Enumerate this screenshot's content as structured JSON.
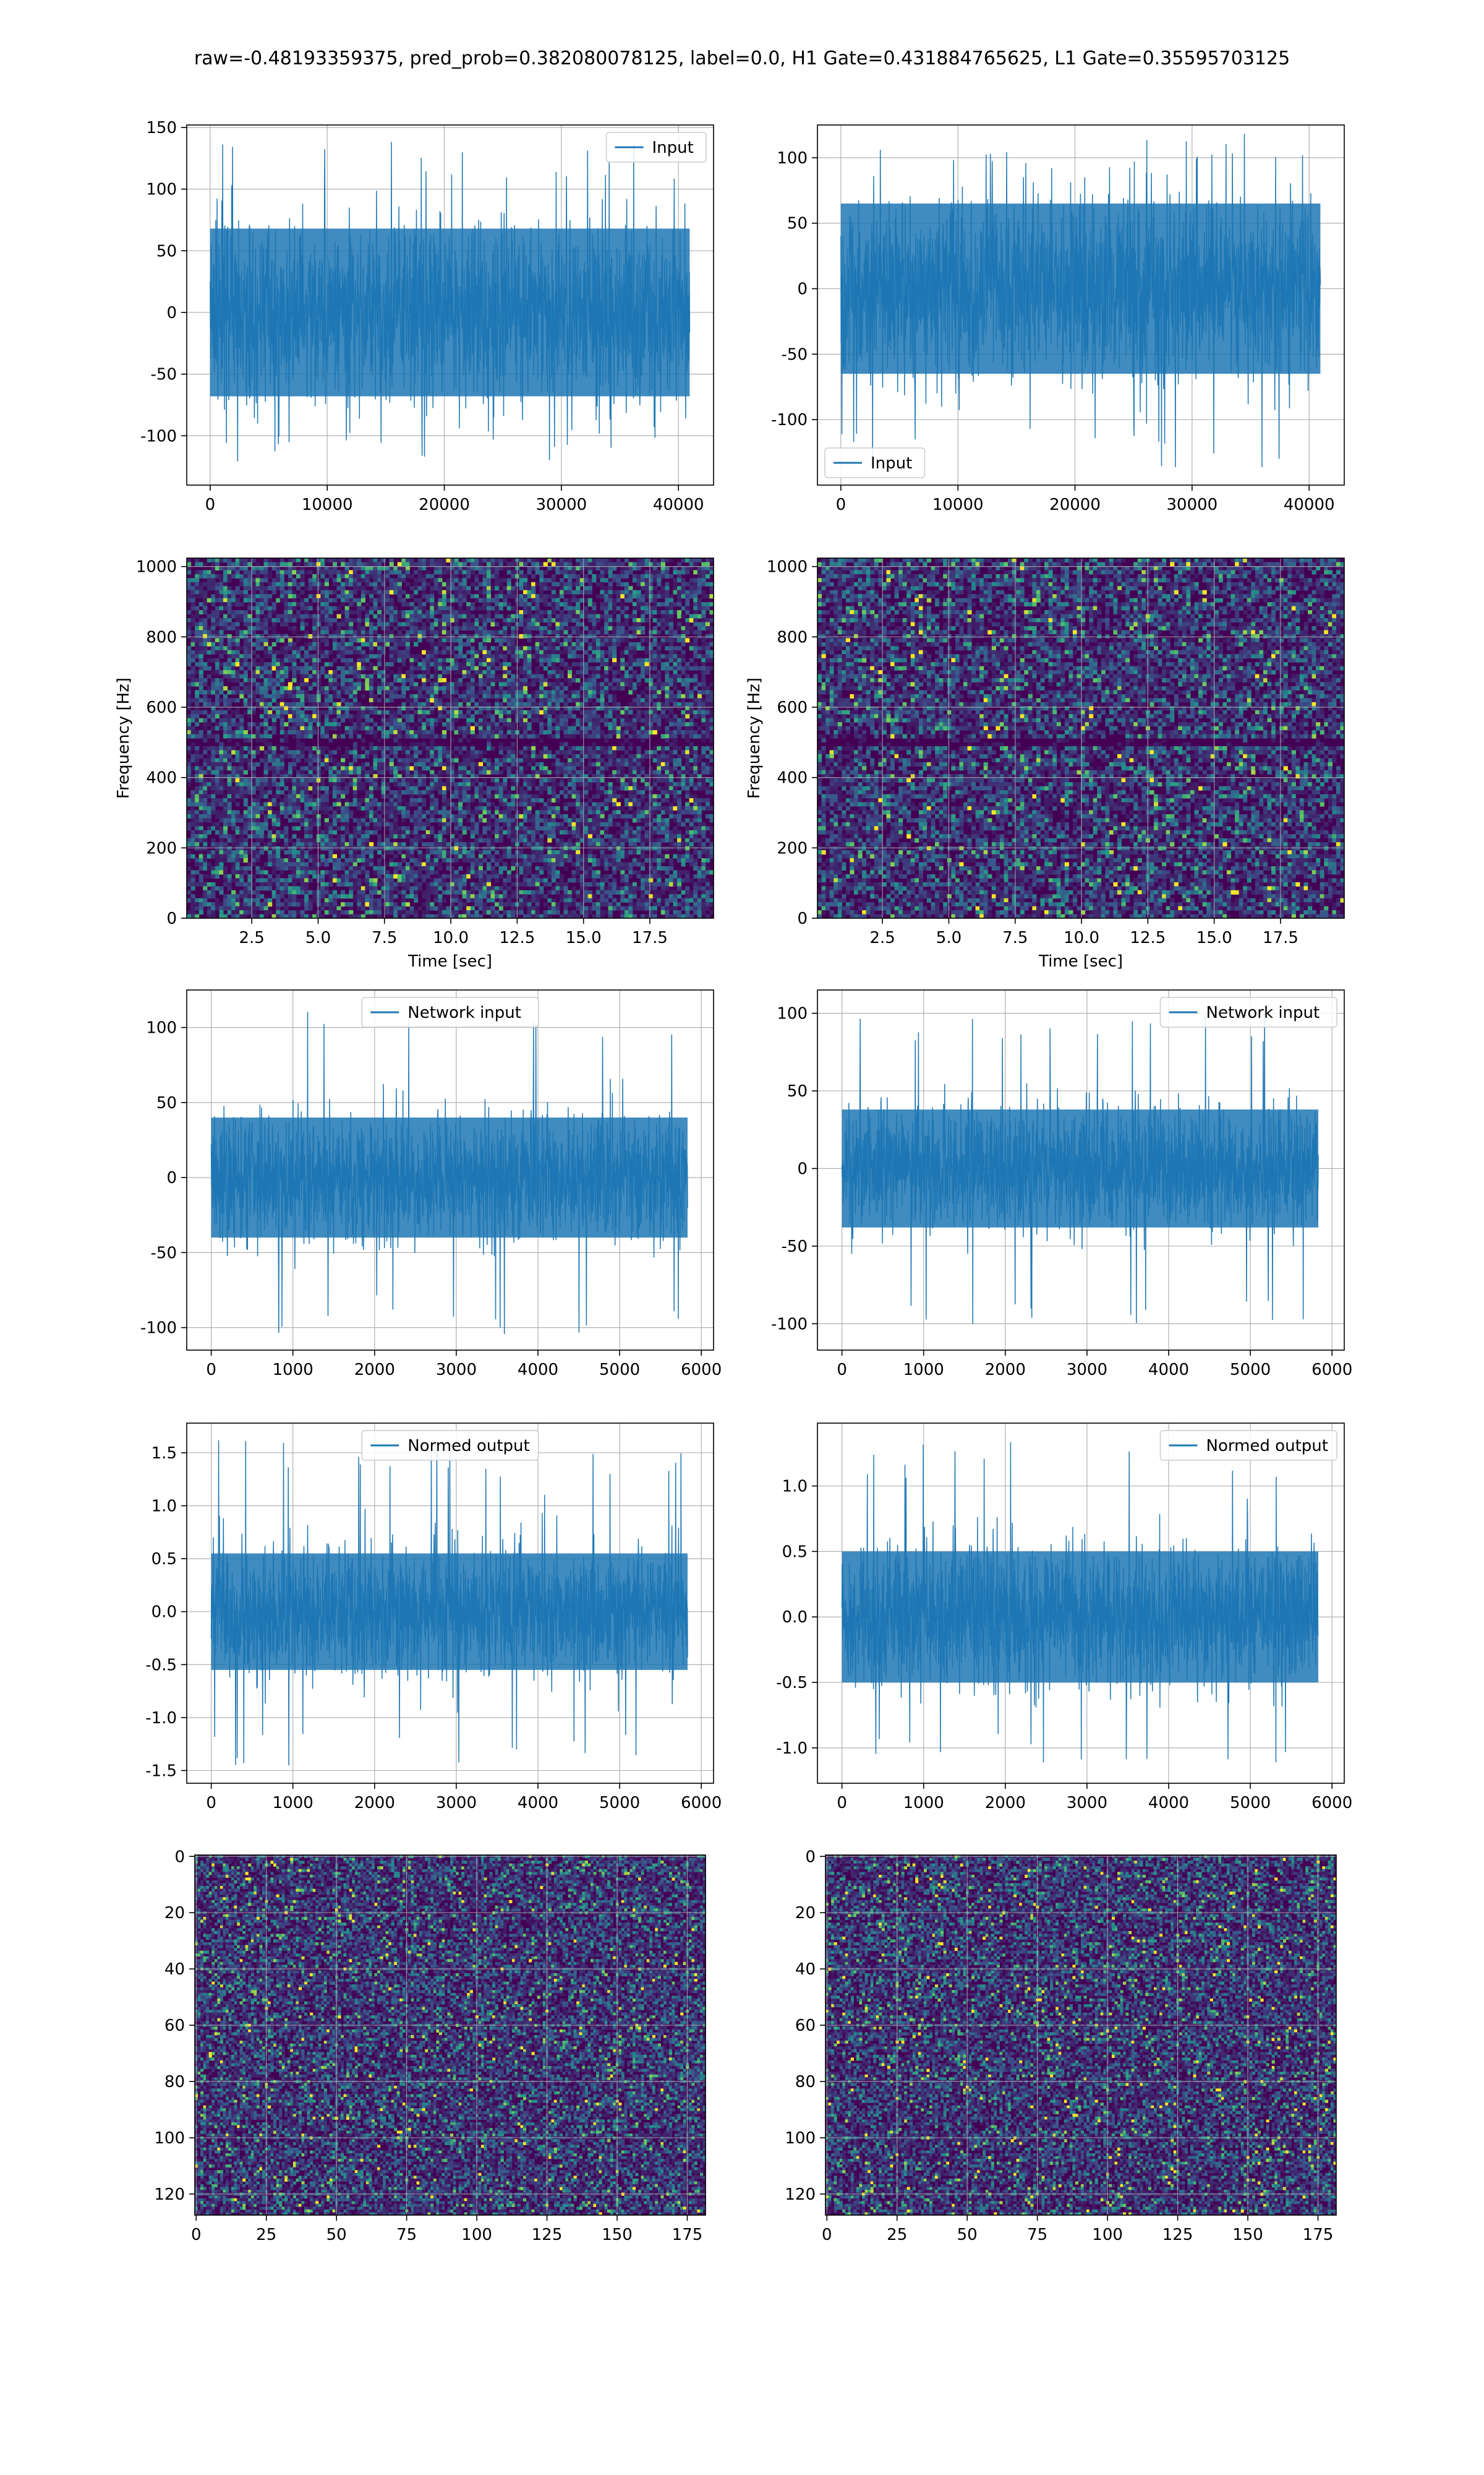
{
  "figure": {
    "title": "raw=-0.48193359375, pred_prob=0.382080078125, label=0.0, H1 Gate=0.431884765625, L1 Gate=0.35595703125"
  },
  "colors": {
    "line": "#1f77b4",
    "grid": "#b0b0b0",
    "heatmap_low": "#440154",
    "heatmap_mid": "#3b528b",
    "heatmap_high": "#21918c",
    "heatmap_peak": "#fde725"
  },
  "chart_data": [
    {
      "id": "row1-left",
      "type": "line",
      "legend": {
        "label": "Input",
        "placement": "upper right"
      },
      "xlim": [
        -2000,
        43000
      ],
      "ylim": [
        -140,
        152
      ],
      "xticks": [
        0,
        10000,
        20000,
        30000,
        40000
      ],
      "yticks": [
        -100,
        -50,
        0,
        50,
        100,
        150
      ],
      "grid": true,
      "series": [
        {
          "x_range": [
            0,
            40960
          ],
          "envelope_p95": [
            -68,
            68
          ],
          "envelope_extreme": [
            -122,
            139
          ]
        }
      ]
    },
    {
      "id": "row1-right",
      "type": "line",
      "legend": {
        "label": "Input",
        "placement": "lower left"
      },
      "xlim": [
        -2000,
        43000
      ],
      "ylim": [
        -150,
        125
      ],
      "xticks": [
        0,
        10000,
        20000,
        30000,
        40000
      ],
      "yticks": [
        -100,
        -50,
        0,
        50,
        100
      ],
      "grid": true,
      "series": [
        {
          "x_range": [
            0,
            40960
          ],
          "envelope_p95": [
            -65,
            65
          ],
          "envelope_extreme": [
            -137,
            122
          ]
        }
      ]
    },
    {
      "id": "row2-left",
      "type": "heatmap",
      "xlabel": "Time [sec]",
      "ylabel": "Frequency [Hz]",
      "xlim": [
        0.05,
        19.9
      ],
      "ylim": [
        0,
        1024
      ],
      "xticks": [
        2.5,
        5.0,
        7.5,
        10.0,
        12.5,
        15.0,
        17.5
      ],
      "yticks": [
        0,
        200,
        400,
        600,
        800,
        1000
      ],
      "grid": true,
      "colormap": "viridis",
      "grid_cells": [
        130,
        90
      ],
      "dark_band_hz": 500
    },
    {
      "id": "row2-right",
      "type": "heatmap",
      "xlabel": "Time [sec]",
      "ylabel": "Frequency [Hz]",
      "xlim": [
        0.05,
        19.9
      ],
      "ylim": [
        0,
        1024
      ],
      "xticks": [
        2.5,
        5.0,
        7.5,
        10.0,
        12.5,
        15.0,
        17.5
      ],
      "yticks": [
        0,
        200,
        400,
        600,
        800,
        1000
      ],
      "grid": true,
      "colormap": "viridis",
      "grid_cells": [
        130,
        90
      ],
      "dark_band_hz": 500
    },
    {
      "id": "row3-left",
      "type": "line",
      "legend": {
        "label": "Network input",
        "placement": "upper center"
      },
      "xlim": [
        -300,
        6150
      ],
      "ylim": [
        -115,
        125
      ],
      "xticks": [
        0,
        1000,
        2000,
        3000,
        4000,
        5000,
        6000
      ],
      "yticks": [
        -100,
        -50,
        0,
        50,
        100
      ],
      "grid": true,
      "series": [
        {
          "x_range": [
            0,
            5832
          ],
          "envelope_p95": [
            -40,
            40
          ],
          "envelope_extreme": [
            -105,
            115
          ]
        }
      ]
    },
    {
      "id": "row3-right",
      "type": "line",
      "legend": {
        "label": "Network input",
        "placement": "upper right"
      },
      "xlim": [
        -300,
        6150
      ],
      "ylim": [
        -117,
        115
      ],
      "xticks": [
        0,
        1000,
        2000,
        3000,
        4000,
        5000,
        6000
      ],
      "yticks": [
        -100,
        -50,
        0,
        50,
        100
      ],
      "grid": true,
      "series": [
        {
          "x_range": [
            0,
            5832
          ],
          "envelope_p95": [
            -38,
            38
          ],
          "envelope_extreme": [
            -103,
            104
          ]
        }
      ]
    },
    {
      "id": "row4-left",
      "type": "line",
      "legend": {
        "label": "Normed output",
        "placement": "upper center"
      },
      "xlim": [
        -300,
        6150
      ],
      "ylim": [
        -1.62,
        1.78
      ],
      "xticks": [
        0,
        1000,
        2000,
        3000,
        4000,
        5000,
        6000
      ],
      "yticks": [
        -1.5,
        -1.0,
        -0.5,
        0.0,
        0.5,
        1.0,
        1.5
      ],
      "grid": true,
      "series": [
        {
          "x_range": [
            0,
            5832
          ],
          "envelope_p95": [
            -0.55,
            0.55
          ],
          "envelope_extreme": [
            -1.48,
            1.62
          ]
        }
      ]
    },
    {
      "id": "row4-right",
      "type": "line",
      "legend": {
        "label": "Normed output",
        "placement": "upper right"
      },
      "xlim": [
        -300,
        6150
      ],
      "ylim": [
        -1.27,
        1.48
      ],
      "xticks": [
        0,
        1000,
        2000,
        3000,
        4000,
        5000,
        6000
      ],
      "yticks": [
        -1.0,
        -0.5,
        0.0,
        0.5,
        1.0
      ],
      "grid": true,
      "series": [
        {
          "x_range": [
            0,
            5832
          ],
          "envelope_p95": [
            -0.5,
            0.5
          ],
          "envelope_extreme": [
            -1.14,
            1.35
          ]
        }
      ]
    },
    {
      "id": "row5-left",
      "type": "heatmap",
      "origin": "upper",
      "xlim": [
        -0.5,
        181.5
      ],
      "ylim": [
        127.5,
        -0.5
      ],
      "xticks": [
        0,
        25,
        50,
        75,
        100,
        125,
        150,
        175
      ],
      "yticks": [
        0,
        20,
        40,
        60,
        80,
        100,
        120
      ],
      "grid": true,
      "colormap": "viridis",
      "grid_cells": [
        182,
        128
      ]
    },
    {
      "id": "row5-right",
      "type": "heatmap",
      "origin": "upper",
      "xlim": [
        -0.5,
        181.5
      ],
      "ylim": [
        127.5,
        -0.5
      ],
      "xticks": [
        0,
        25,
        50,
        75,
        100,
        125,
        150,
        175
      ],
      "yticks": [
        0,
        20,
        40,
        60,
        80,
        100,
        120
      ],
      "grid": true,
      "colormap": "viridis",
      "grid_cells": [
        182,
        128
      ]
    }
  ]
}
